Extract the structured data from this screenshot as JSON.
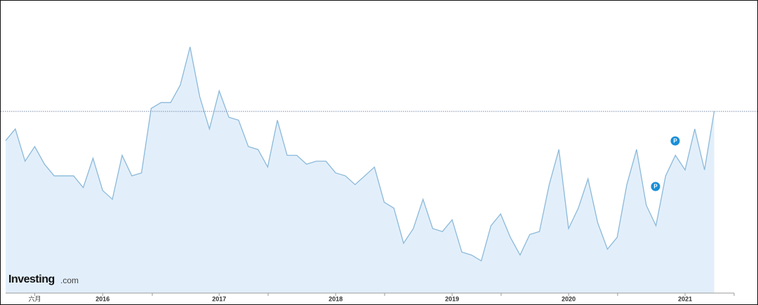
{
  "chart_data": {
    "type": "area",
    "categories": [
      null,
      null,
      null,
      "六月",
      null,
      null,
      null,
      null,
      null,
      null,
      "2016",
      null,
      null,
      null,
      null,
      null,
      null,
      null,
      null,
      null,
      null,
      null,
      "2017",
      null,
      null,
      null,
      null,
      null,
      null,
      null,
      null,
      null,
      null,
      null,
      "2018",
      null,
      null,
      null,
      null,
      null,
      null,
      null,
      null,
      null,
      null,
      null,
      "2019",
      null,
      null,
      null,
      null,
      null,
      null,
      null,
      null,
      null,
      null,
      null,
      "2020",
      null,
      null,
      null,
      null,
      null,
      null,
      null,
      null,
      null,
      null,
      null,
      "2021",
      null,
      null,
      null
    ],
    "values": [
      52,
      56,
      45,
      50,
      44,
      40,
      40,
      40,
      36,
      46,
      35,
      32,
      47,
      40,
      41,
      63,
      65,
      65,
      71,
      84,
      67,
      56,
      69,
      60,
      59,
      50,
      49,
      43,
      59,
      47,
      47,
      44,
      45,
      45,
      41,
      40,
      37,
      40,
      43,
      31,
      29,
      17,
      22,
      32,
      22,
      21,
      25,
      14,
      13,
      11,
      23,
      27,
      19,
      13,
      20,
      21,
      37,
      49,
      22,
      29,
      39,
      24,
      15,
      19,
      37,
      49,
      30,
      23,
      40,
      47,
      42,
      56,
      42,
      62
    ],
    "color": "#8cb9d9",
    "fill": "#e2effb",
    "ylim": [
      0,
      100
    ],
    "markers": [
      "P",
      "P"
    ],
    "watermark": "Investing",
    "watermark_suffix": ".com"
  }
}
